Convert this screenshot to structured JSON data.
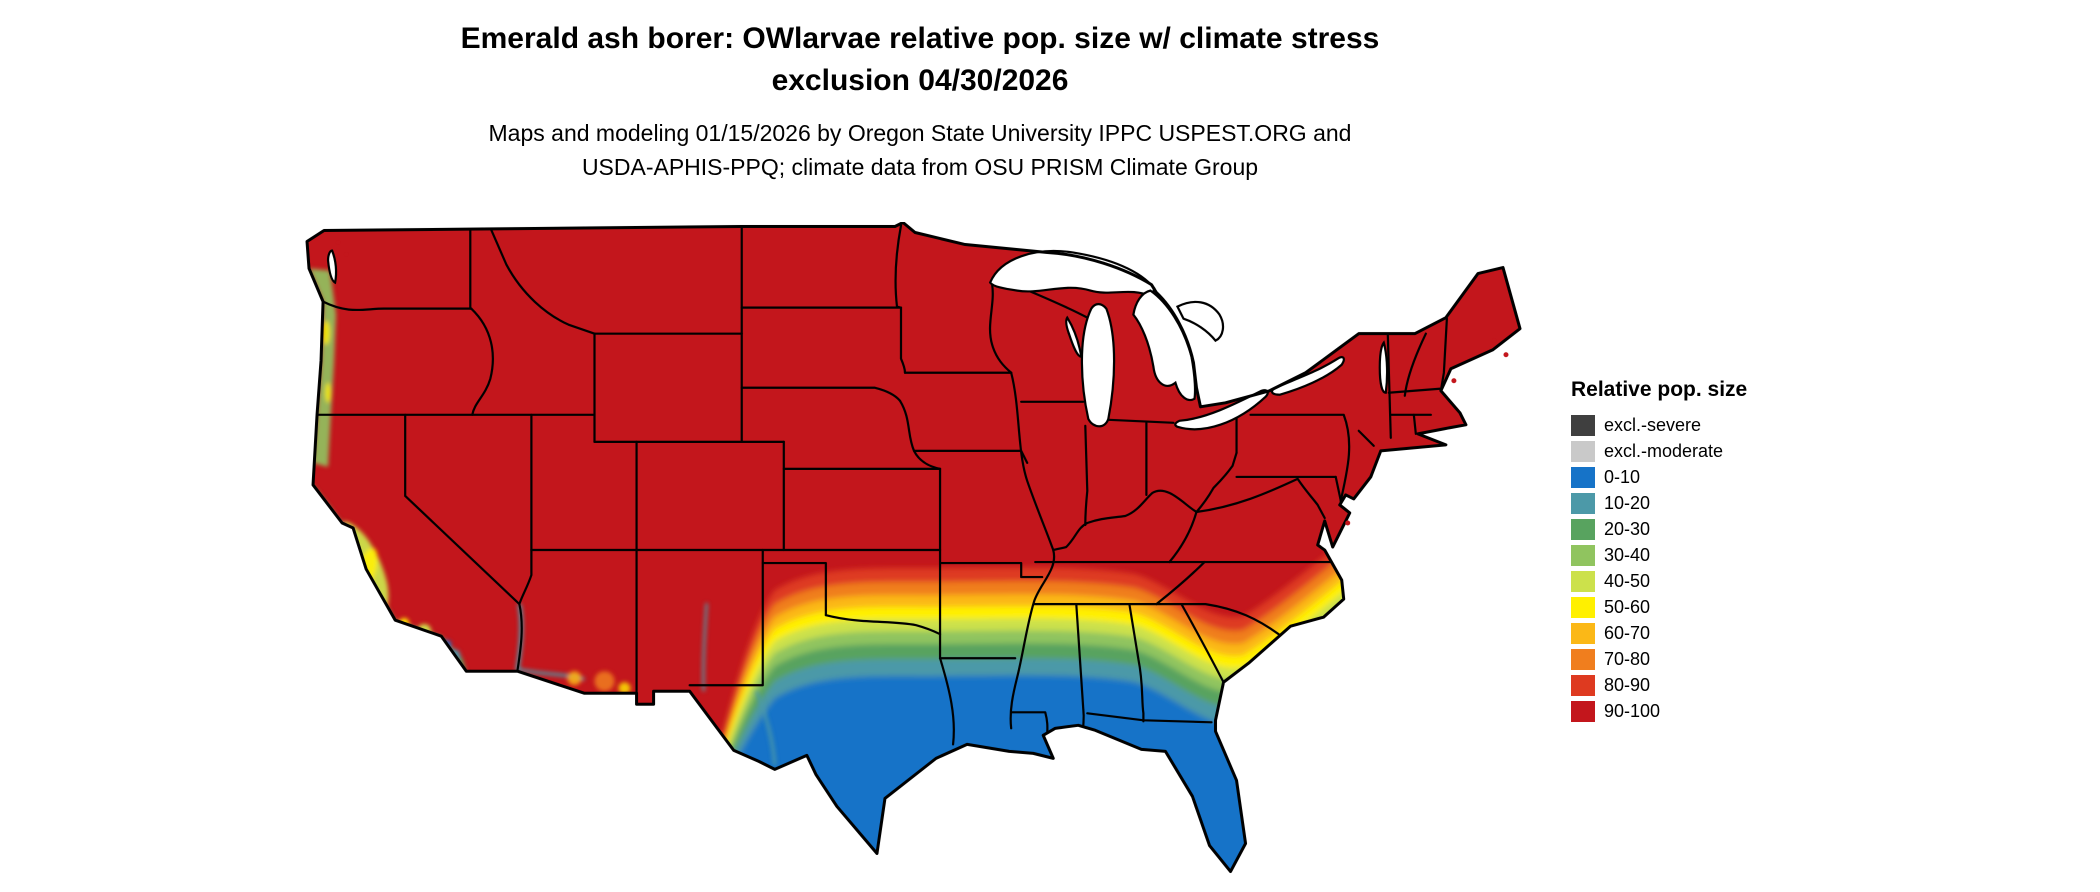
{
  "header": {
    "title_line1": "Emerald ash borer: OWlarvae relative pop. size w/ climate stress",
    "title_line2": "exclusion 04/30/2026",
    "subtitle_line1": "Maps and modeling 01/15/2026 by Oregon State University IPPC USPEST.ORG and",
    "subtitle_line2": "USDA-APHIS-PPQ; climate data from OSU PRISM Climate Group"
  },
  "legend": {
    "title": "Relative pop. size",
    "items": [
      {
        "label": "excl.-severe",
        "color": "#3F3F3F"
      },
      {
        "label": "excl.-moderate",
        "color": "#C9C9C9"
      },
      {
        "label": "0-10",
        "color": "#1673C8"
      },
      {
        "label": "10-20",
        "color": "#4C99A8"
      },
      {
        "label": "20-30",
        "color": "#58A35F"
      },
      {
        "label": "30-40",
        "color": "#90C45F"
      },
      {
        "label": "40-50",
        "color": "#CCE14B"
      },
      {
        "label": "50-60",
        "color": "#FFF000"
      },
      {
        "label": "60-70",
        "color": "#FBB817"
      },
      {
        "label": "70-80",
        "color": "#F07E1E"
      },
      {
        "label": "80-90",
        "color": "#DE3A20"
      },
      {
        "label": "90-100",
        "color": "#C3161C"
      }
    ]
  }
}
